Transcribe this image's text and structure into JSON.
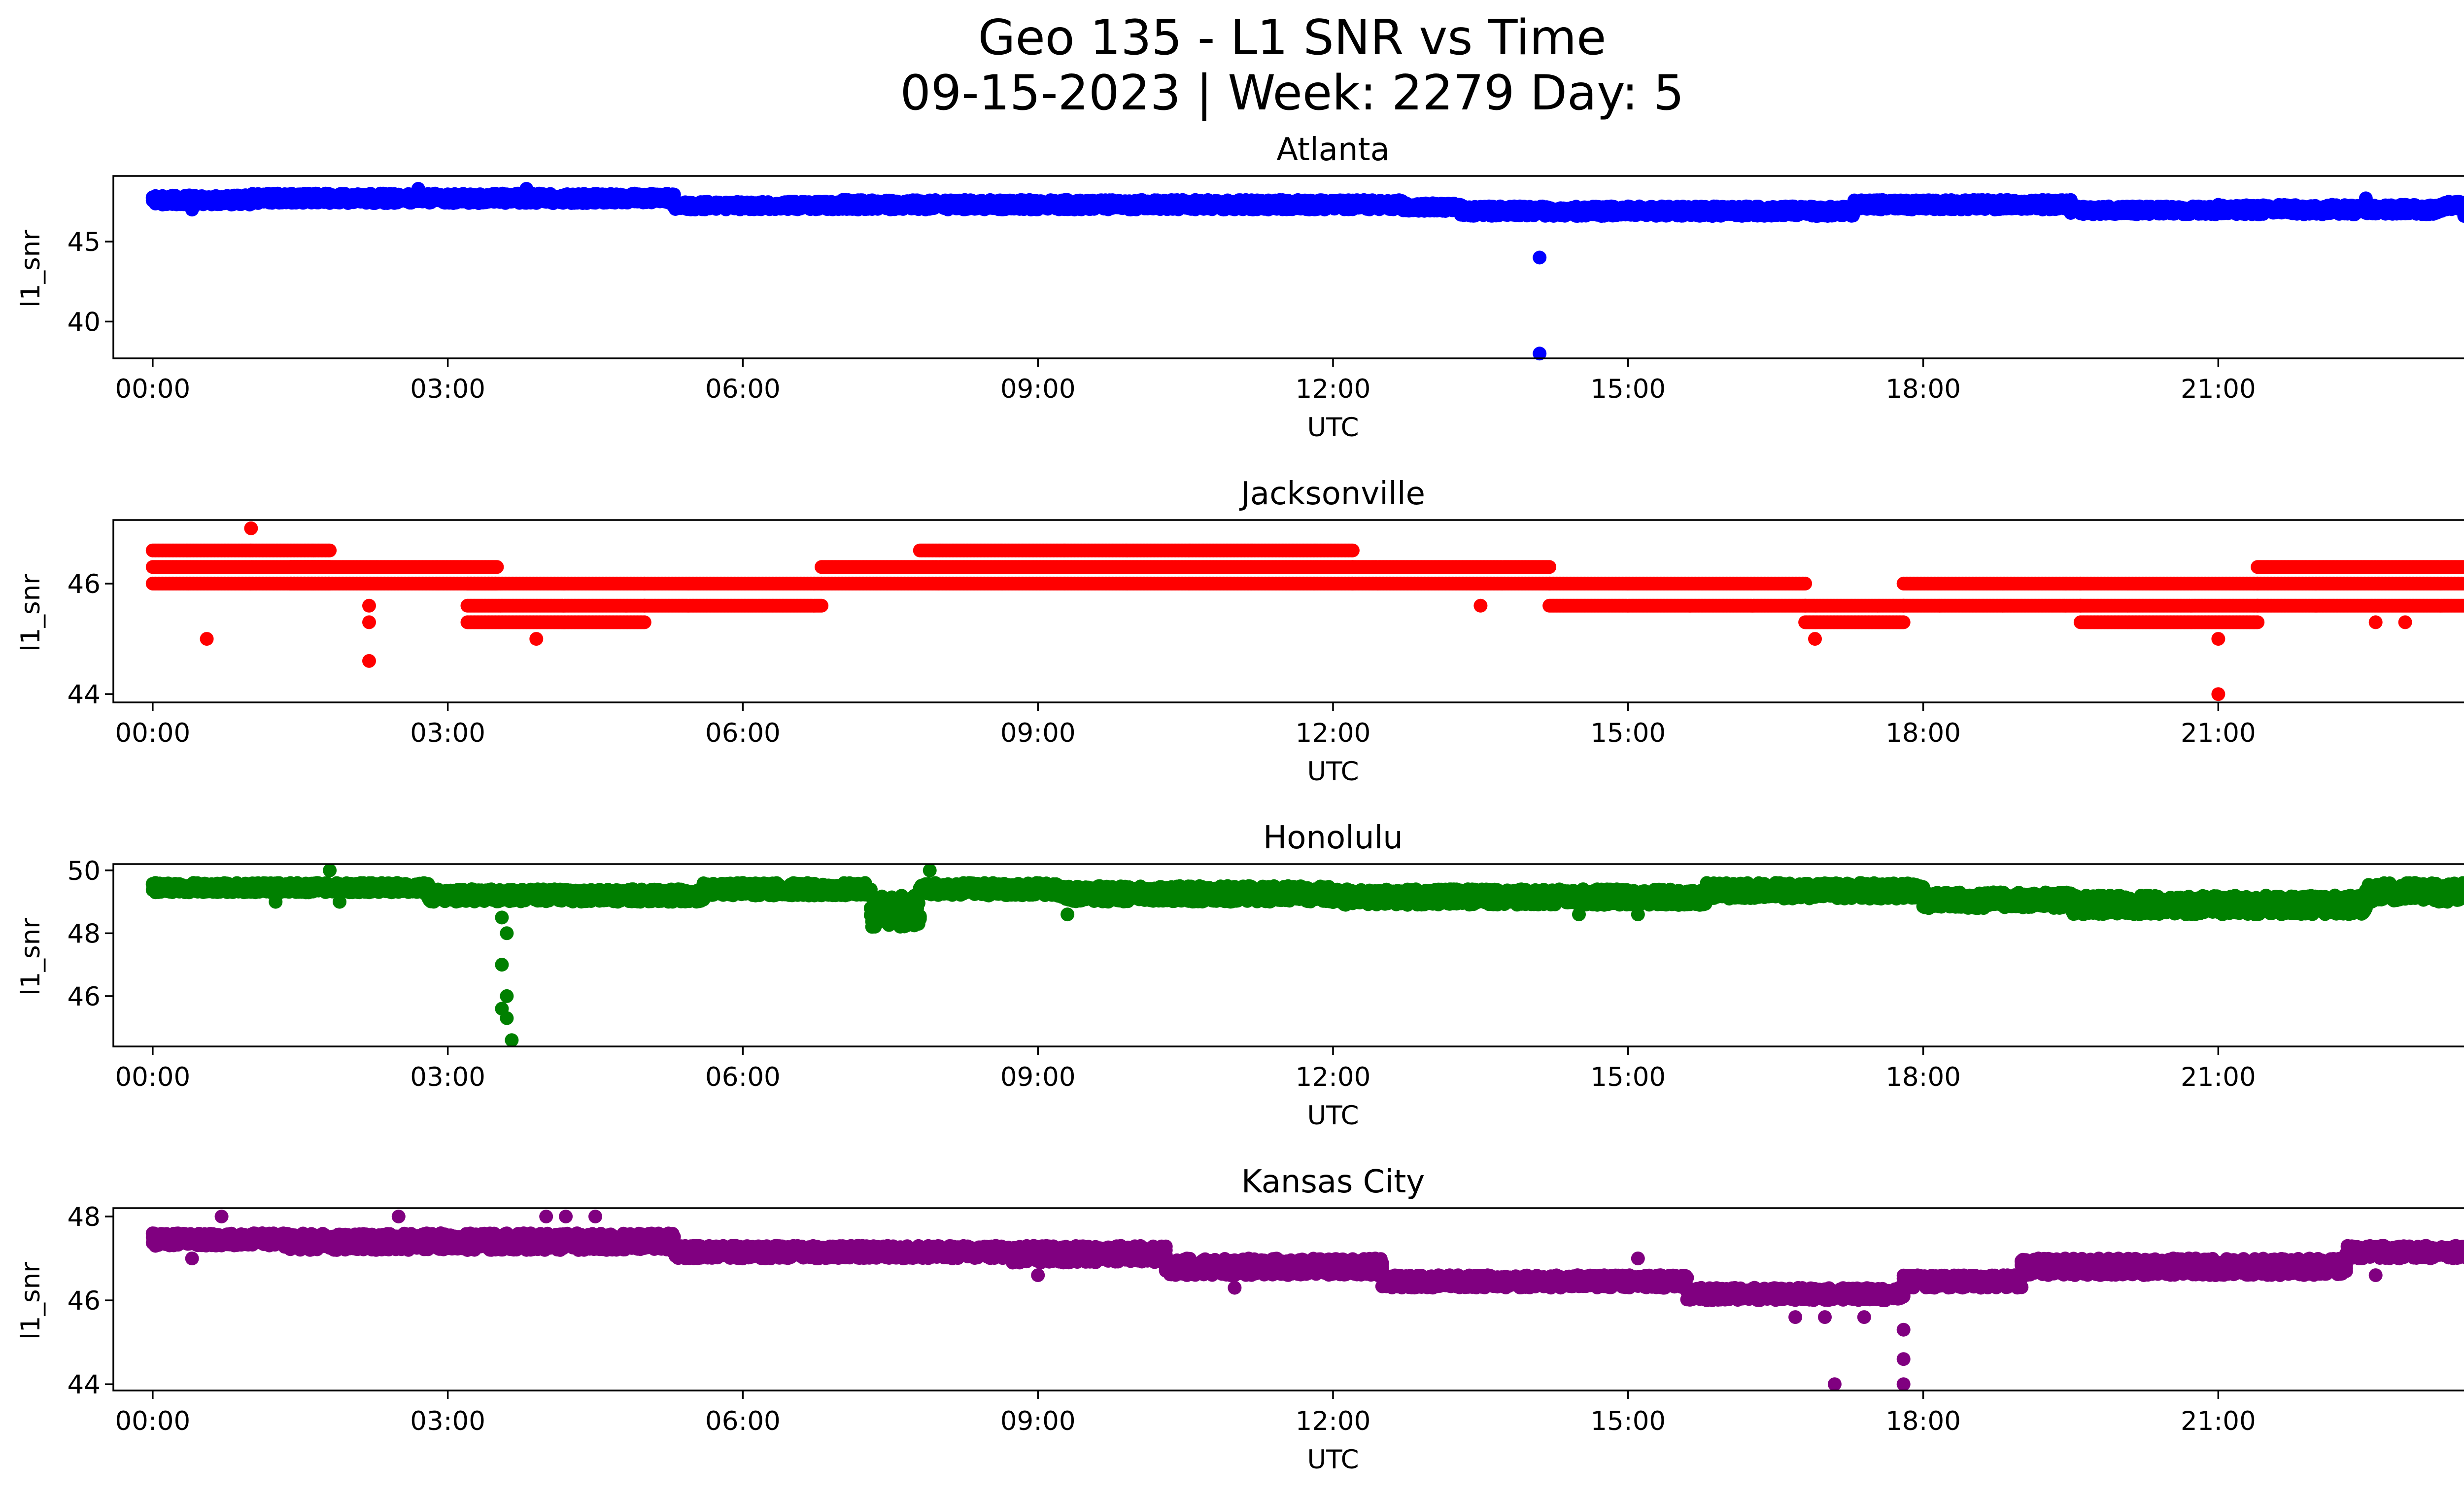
{
  "figure": {
    "title_line1": "Geo 135 - L1 SNR vs Time",
    "title_line2": "09-15-2023 | Week: 2279 Day: 5"
  },
  "chart_data": [
    {
      "type": "scatter",
      "title": "Atlanta",
      "xlabel": "UTC",
      "ylabel": "l1_snr",
      "color": "#0000ff",
      "x_unit": "hours UTC",
      "xlim": [
        -0.4,
        24.4
      ],
      "ylim": [
        37.7,
        49.1
      ],
      "xticks": [
        "00:00",
        "03:00",
        "06:00",
        "09:00",
        "12:00",
        "15:00",
        "18:00",
        "21:00",
        "00:00"
      ],
      "yticks": [
        40,
        45
      ],
      "segments": [
        {
          "x": [
            0.0,
            1.0
          ],
          "y": [
            47.3,
            47.9
          ]
        },
        {
          "x": [
            1.0,
            3.0
          ],
          "y": [
            47.4,
            48.0
          ]
        },
        {
          "x": [
            3.0,
            5.3
          ],
          "y": [
            47.4,
            48.0
          ]
        },
        {
          "x": [
            5.3,
            7.0
          ],
          "y": [
            47.0,
            47.5
          ]
        },
        {
          "x": [
            7.0,
            9.0
          ],
          "y": [
            47.0,
            47.6
          ]
        },
        {
          "x": [
            9.0,
            11.0
          ],
          "y": [
            47.0,
            47.6
          ]
        },
        {
          "x": [
            11.0,
            12.7
          ],
          "y": [
            47.0,
            47.6
          ]
        },
        {
          "x": [
            12.7,
            13.3
          ],
          "y": [
            46.9,
            47.4
          ]
        },
        {
          "x": [
            13.3,
            15.5
          ],
          "y": [
            46.6,
            47.2
          ]
        },
        {
          "x": [
            15.5,
            17.3
          ],
          "y": [
            46.6,
            47.2
          ]
        },
        {
          "x": [
            17.3,
            19.5
          ],
          "y": [
            47.0,
            47.6
          ]
        },
        {
          "x": [
            19.5,
            21.0
          ],
          "y": [
            46.7,
            47.2
          ]
        },
        {
          "x": [
            21.0,
            23.3
          ],
          "y": [
            46.7,
            47.3
          ]
        },
        {
          "x": [
            23.3,
            24.0
          ],
          "y": [
            47.0,
            47.5
          ]
        }
      ],
      "points": [
        {
          "x": 0.4,
          "y": 47.0
        },
        {
          "x": 2.7,
          "y": 48.3
        },
        {
          "x": 3.8,
          "y": 48.3
        },
        {
          "x": 4.9,
          "y": 48.0
        },
        {
          "x": 14.1,
          "y": 44.0
        },
        {
          "x": 14.1,
          "y": 38.0
        },
        {
          "x": 22.5,
          "y": 47.7
        },
        {
          "x": 23.5,
          "y": 46.6
        },
        {
          "x": 23.8,
          "y": 47.6
        }
      ]
    },
    {
      "type": "scatter",
      "title": "Jacksonville",
      "xlabel": "UTC",
      "ylabel": "l1_snr",
      "color": "#ff0000",
      "x_unit": "hours UTC",
      "xlim": [
        -0.4,
        24.4
      ],
      "ylim": [
        43.85,
        47.15
      ],
      "xticks": [
        "00:00",
        "03:00",
        "06:00",
        "09:00",
        "12:00",
        "15:00",
        "18:00",
        "21:00",
        "00:00"
      ],
      "yticks": [
        44,
        46
      ],
      "levels": [
        45.3,
        45.6,
        46.0,
        46.3,
        46.6
      ],
      "bands": [
        {
          "x": [
            0.0,
            1.8
          ],
          "levels": [
            46.0,
            46.3,
            46.6
          ]
        },
        {
          "x": [
            1.4,
            3.5
          ],
          "levels": [
            46.0,
            46.3
          ]
        },
        {
          "x": [
            3.2,
            5.0
          ],
          "levels": [
            45.3,
            45.6,
            46.0
          ]
        },
        {
          "x": [
            5.0,
            6.8
          ],
          "levels": [
            45.6,
            46.0
          ]
        },
        {
          "x": [
            6.8,
            12.2
          ],
          "levels": [
            46.0,
            46.3
          ]
        },
        {
          "x": [
            7.8,
            12.2
          ],
          "levels": [
            46.6
          ]
        },
        {
          "x": [
            12.2,
            14.2
          ],
          "levels": [
            46.0,
            46.3
          ]
        },
        {
          "x": [
            14.2,
            16.8
          ],
          "levels": [
            45.6,
            46.0
          ]
        },
        {
          "x": [
            16.8,
            17.8
          ],
          "levels": [
            45.3,
            45.6
          ]
        },
        {
          "x": [
            17.8,
            19.6
          ],
          "levels": [
            45.6,
            46.0
          ]
        },
        {
          "x": [
            19.6,
            21.4
          ],
          "levels": [
            45.3,
            45.6,
            46.0
          ]
        },
        {
          "x": [
            21.4,
            24.0
          ],
          "levels": [
            45.6,
            46.0,
            46.3
          ]
        }
      ],
      "points": [
        {
          "x": 0.55,
          "y": 45.0
        },
        {
          "x": 1.0,
          "y": 47.0
        },
        {
          "x": 2.2,
          "y": 45.6
        },
        {
          "x": 2.2,
          "y": 45.3
        },
        {
          "x": 2.2,
          "y": 44.6
        },
        {
          "x": 3.9,
          "y": 45.0
        },
        {
          "x": 13.5,
          "y": 45.6
        },
        {
          "x": 16.9,
          "y": 45.0
        },
        {
          "x": 21.0,
          "y": 45.0
        },
        {
          "x": 21.0,
          "y": 44.0
        },
        {
          "x": 22.6,
          "y": 45.3
        },
        {
          "x": 22.9,
          "y": 45.3
        }
      ]
    },
    {
      "type": "scatter",
      "title": "Honolulu",
      "xlabel": "UTC",
      "ylabel": "l1_snr",
      "color": "#008000",
      "x_unit": "hours UTC",
      "xlim": [
        -0.4,
        24.4
      ],
      "ylim": [
        44.4,
        50.2
      ],
      "xticks": [
        "00:00",
        "03:00",
        "06:00",
        "09:00",
        "12:00",
        "15:00",
        "18:00",
        "21:00",
        "00:00"
      ],
      "yticks": [
        46,
        48,
        50
      ],
      "segments": [
        {
          "x": [
            0.0,
            2.8
          ],
          "y": [
            49.3,
            49.6
          ]
        },
        {
          "x": [
            2.8,
            5.6
          ],
          "y": [
            49.0,
            49.4
          ]
        },
        {
          "x": [
            5.6,
            7.3
          ],
          "y": [
            49.2,
            49.6
          ]
        },
        {
          "x": [
            7.3,
            7.8
          ],
          "y": [
            48.2,
            49.2
          ]
        },
        {
          "x": [
            7.8,
            9.2
          ],
          "y": [
            49.2,
            49.6
          ]
        },
        {
          "x": [
            9.2,
            12.0
          ],
          "y": [
            49.0,
            49.5
          ]
        },
        {
          "x": [
            12.0,
            15.8
          ],
          "y": [
            48.9,
            49.4
          ]
        },
        {
          "x": [
            15.8,
            18.0
          ],
          "y": [
            49.1,
            49.6
          ]
        },
        {
          "x": [
            18.0,
            19.5
          ],
          "y": [
            48.8,
            49.3
          ]
        },
        {
          "x": [
            19.5,
            22.5
          ],
          "y": [
            48.6,
            49.2
          ]
        },
        {
          "x": [
            22.5,
            24.0
          ],
          "y": [
            49.0,
            49.6
          ]
        }
      ],
      "points": [
        {
          "x": 1.8,
          "y": 50.0
        },
        {
          "x": 7.9,
          "y": 50.0
        },
        {
          "x": 1.9,
          "y": 49.0
        },
        {
          "x": 1.25,
          "y": 49.0
        },
        {
          "x": 3.55,
          "y": 48.5
        },
        {
          "x": 3.6,
          "y": 48.0
        },
        {
          "x": 3.55,
          "y": 47.0
        },
        {
          "x": 3.6,
          "y": 46.0
        },
        {
          "x": 3.55,
          "y": 45.6
        },
        {
          "x": 3.6,
          "y": 45.3
        },
        {
          "x": 3.65,
          "y": 44.6
        },
        {
          "x": 9.3,
          "y": 48.6
        },
        {
          "x": 14.5,
          "y": 48.6
        },
        {
          "x": 15.1,
          "y": 48.6
        },
        {
          "x": 23.0,
          "y": 49.6
        }
      ]
    },
    {
      "type": "scatter",
      "title": "Kansas City",
      "xlabel": "UTC",
      "ylabel": "l1_snr",
      "color": "#800080",
      "x_unit": "hours UTC",
      "xlim": [
        -0.4,
        24.4
      ],
      "ylim": [
        43.85,
        48.2
      ],
      "xticks": [
        "00:00",
        "03:00",
        "06:00",
        "09:00",
        "12:00",
        "15:00",
        "18:00",
        "21:00",
        "00:00"
      ],
      "yticks": [
        44,
        46,
        48
      ],
      "segments": [
        {
          "x": [
            0.0,
            1.3
          ],
          "y": [
            47.3,
            47.6
          ]
        },
        {
          "x": [
            1.3,
            5.3
          ],
          "y": [
            47.2,
            47.6
          ]
        },
        {
          "x": [
            5.3,
            8.7
          ],
          "y": [
            47.0,
            47.3
          ]
        },
        {
          "x": [
            8.7,
            10.3
          ],
          "y": [
            46.9,
            47.3
          ]
        },
        {
          "x": [
            10.3,
            12.5
          ],
          "y": [
            46.6,
            47.0
          ]
        },
        {
          "x": [
            12.5,
            15.6
          ],
          "y": [
            46.3,
            46.6
          ]
        },
        {
          "x": [
            15.6,
            17.8
          ],
          "y": [
            46.0,
            46.3
          ]
        },
        {
          "x": [
            17.8,
            19.0
          ],
          "y": [
            46.3,
            46.6
          ]
        },
        {
          "x": [
            19.0,
            22.3
          ],
          "y": [
            46.6,
            47.0
          ]
        },
        {
          "x": [
            22.3,
            24.0
          ],
          "y": [
            47.0,
            47.3
          ]
        }
      ],
      "points": [
        {
          "x": 0.7,
          "y": 48.0
        },
        {
          "x": 2.5,
          "y": 48.0
        },
        {
          "x": 4.0,
          "y": 48.0
        },
        {
          "x": 4.2,
          "y": 48.0
        },
        {
          "x": 4.5,
          "y": 48.0
        },
        {
          "x": 0.4,
          "y": 47.0
        },
        {
          "x": 9.0,
          "y": 46.6
        },
        {
          "x": 11.0,
          "y": 46.3
        },
        {
          "x": 15.1,
          "y": 47.0
        },
        {
          "x": 16.7,
          "y": 45.6
        },
        {
          "x": 17.0,
          "y": 45.6
        },
        {
          "x": 17.4,
          "y": 45.6
        },
        {
          "x": 17.1,
          "y": 44.0
        },
        {
          "x": 17.8,
          "y": 45.3
        },
        {
          "x": 17.8,
          "y": 44.6
        },
        {
          "x": 17.8,
          "y": 44.0
        },
        {
          "x": 22.6,
          "y": 46.6
        },
        {
          "x": 23.7,
          "y": 47.6
        }
      ]
    }
  ]
}
